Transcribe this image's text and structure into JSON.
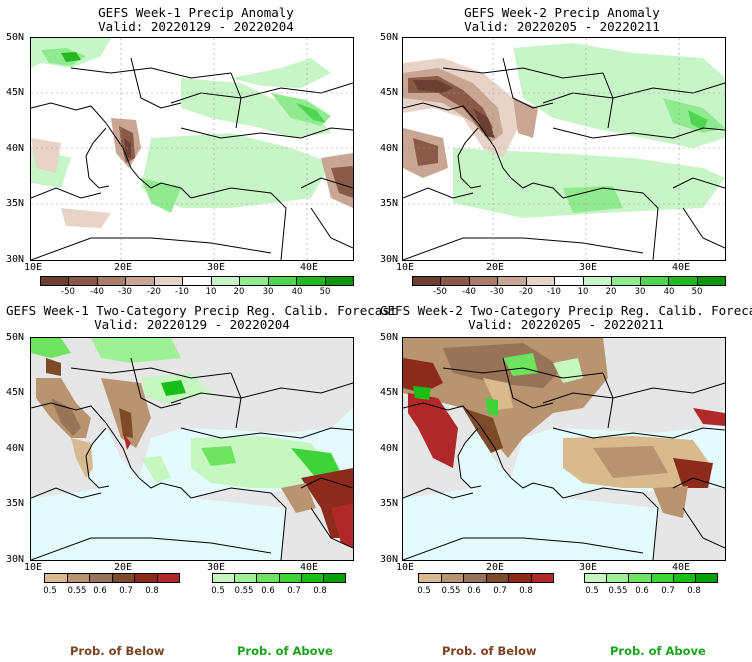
{
  "panels": [
    {
      "id": "p1",
      "title_line1": "GEFS Week-1 Precip Anomaly",
      "title_line2": "Valid: 20220129 - 20220204",
      "type": "anomaly"
    },
    {
      "id": "p2",
      "title_line1": "GEFS Week-2 Precip Anomaly",
      "title_line2": "Valid: 20220205 - 20220211",
      "type": "anomaly"
    },
    {
      "id": "p3",
      "title_line1": "GEFS Week-1 Two-Category Precip Reg. Calib. Forecast",
      "title_line2": "Valid: 20220129 - 20220204",
      "type": "probability"
    },
    {
      "id": "p4",
      "title_line1": "GEFS Week-2 Two-Category Precip Reg. Calib. Forecast",
      "title_line2": "Valid: 20220205 - 20220211",
      "type": "probability"
    }
  ],
  "lat_labels": [
    "50N",
    "45N",
    "40N",
    "35N",
    "30N"
  ],
  "lon_labels": [
    "10E",
    "20E",
    "30E",
    "40E"
  ],
  "anomaly_colorbar": {
    "labels": [
      "-50",
      "-40",
      "-30",
      "-20",
      "-10",
      "10",
      "20",
      "30",
      "40",
      "50"
    ],
    "colors": [
      "#6b4032",
      "#8a5a48",
      "#aa7d68",
      "#c9a593",
      "#e8d3c8",
      "#ffffff",
      "#c8f5c8",
      "#90eb90",
      "#50d550",
      "#22b822",
      "#0a940a"
    ]
  },
  "prob_below_colorbar": {
    "labels": [
      "0.5",
      "0.55",
      "0.6",
      "0.7",
      "0.8"
    ],
    "colors": [
      "#d9b98e",
      "#b99471",
      "#977457",
      "#7d4a2a",
      "#8c2a1c",
      "#b02828"
    ]
  },
  "prob_above_colorbar": {
    "labels": [
      "0.5",
      "0.55",
      "0.6",
      "0.7",
      "0.8"
    ],
    "colors": [
      "#c6f7c0",
      "#9ef094",
      "#6de35f",
      "#3fd33a",
      "#18bd18",
      "#06a006"
    ]
  },
  "legend": {
    "below_label": "Prob. of Below",
    "above_label": "Prob. of Above",
    "below_color": "#7a4424",
    "above_color": "#1aa31a"
  },
  "map_colors": {
    "sea_prob": "#e3fbfb",
    "land_noskill": "#e6e6e6",
    "land_anomaly": "#ffffff"
  }
}
